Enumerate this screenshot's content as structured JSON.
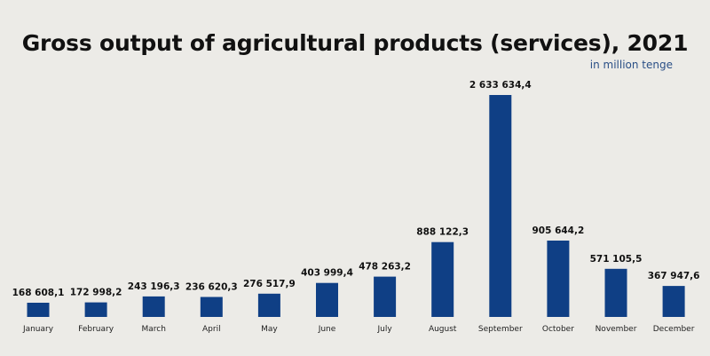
{
  "chart_data": {
    "type": "bar",
    "title": "Gross output of agricultural products (services), 2021",
    "subtitle": "in million tenge",
    "categories": [
      "January",
      "February",
      "March",
      "April",
      "May",
      "June",
      "July",
      "August",
      "September",
      "October",
      "November",
      "December"
    ],
    "values": [
      168608.1,
      172998.2,
      243196.3,
      236620.3,
      276517.9,
      403999.4,
      478263.2,
      888122.3,
      2633634.4,
      905644.2,
      571105.5,
      367947.6
    ],
    "value_labels": [
      "168 608,1",
      "172 998,2",
      "243 196,3",
      "236 620,3",
      "276 517,9",
      "403 999,4",
      "478 263,2",
      "888 122,3",
      "2 633 634,4",
      "905 644,2",
      "571 105,5",
      "367 947,6"
    ],
    "xlabel": "",
    "ylabel": "",
    "ylim": [
      0,
      2633634.4
    ],
    "grid": false,
    "legend": "none",
    "colors": {
      "bar": "#0f3f85",
      "text": "#111111",
      "subtitle": "#2a4f86",
      "background": "#ecebe7"
    }
  }
}
